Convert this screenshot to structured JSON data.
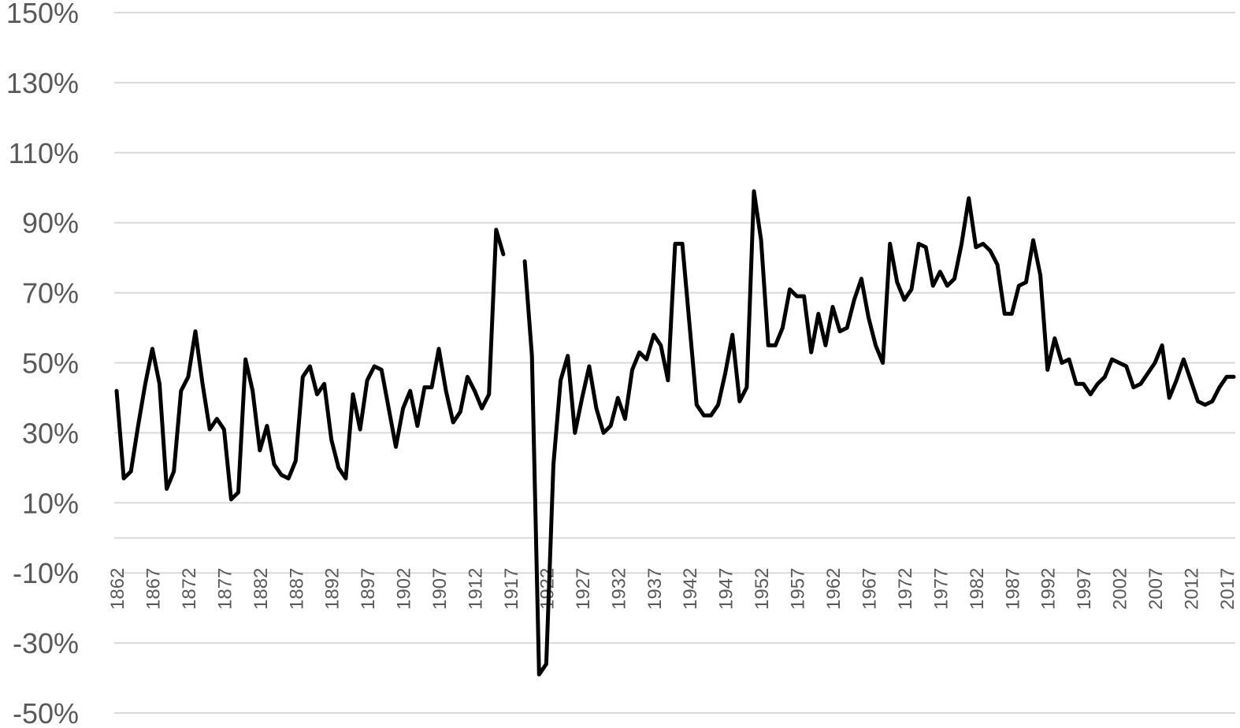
{
  "chart_data": {
    "type": "line",
    "title": "",
    "xlabel": "",
    "ylabel": "",
    "ylim": [
      -50,
      150
    ],
    "y_ticks": [
      "150%",
      "130%",
      "110%",
      "90%",
      "70%",
      "50%",
      "30%",
      "10%",
      "-10%",
      "-30%",
      "-50%"
    ],
    "y_tick_values": [
      150,
      130,
      110,
      90,
      70,
      50,
      30,
      10,
      -10,
      -30,
      -50
    ],
    "x_ticks": [
      "1862",
      "1867",
      "1872",
      "1877",
      "1882",
      "1887",
      "1892",
      "1897",
      "1902",
      "1907",
      "1912",
      "1917",
      "1922",
      "1927",
      "1932",
      "1937",
      "1942",
      "1947",
      "1952",
      "1957",
      "1962",
      "1967",
      "1972",
      "1977",
      "1982",
      "1987",
      "1992",
      "1997",
      "2002",
      "2007",
      "2012",
      "2017"
    ],
    "xlim": [
      1862,
      2018
    ],
    "x_axis_crosses_y": 0,
    "grid": true,
    "legend": "none",
    "line_color": "#000000",
    "series": [
      {
        "x": [
          1862,
          1863,
          1864,
          1865,
          1866,
          1867,
          1868,
          1869,
          1870,
          1871,
          1872,
          1873,
          1874,
          1875,
          1876,
          1877,
          1878,
          1879,
          1880,
          1881,
          1882,
          1883,
          1884,
          1885,
          1886,
          1887,
          1888,
          1889,
          1890,
          1891,
          1892,
          1893,
          1894,
          1895,
          1896,
          1897,
          1898,
          1899,
          1900,
          1901,
          1902,
          1903,
          1904,
          1905,
          1906,
          1907,
          1908,
          1909,
          1910,
          1911,
          1912,
          1913,
          1914,
          1915,
          1916,
          1917,
          1918,
          1919,
          1920,
          1921,
          1922,
          1923,
          1924,
          1925,
          1926,
          1927,
          1928,
          1929,
          1930,
          1931,
          1932,
          1933,
          1934,
          1935,
          1936,
          1937,
          1938,
          1939,
          1940,
          1941,
          1942,
          1943,
          1944,
          1945,
          1946,
          1947,
          1948,
          1949,
          1950,
          1951,
          1952,
          1953,
          1954,
          1955,
          1956,
          1957,
          1958,
          1959,
          1960,
          1961,
          1962,
          1963,
          1964,
          1965,
          1966,
          1967,
          1968,
          1969,
          1970,
          1971,
          1972,
          1973,
          1974,
          1975,
          1976,
          1977,
          1978,
          1979,
          1980,
          1981,
          1982,
          1983,
          1984,
          1985,
          1986,
          1987,
          1988,
          1989,
          1990,
          1991,
          1992,
          1993,
          1994,
          1995,
          1996,
          1997,
          1998,
          1999,
          2000,
          2001,
          2002,
          2003,
          2004,
          2005,
          2006,
          2007,
          2008,
          2009,
          2010,
          2011,
          2012,
          2013,
          2014,
          2015,
          2016,
          2017,
          2018
        ],
        "values": [
          42,
          17,
          19,
          32,
          44,
          54,
          44,
          14,
          19,
          42,
          46,
          59,
          44,
          31,
          34,
          31,
          11,
          13,
          51,
          42,
          25,
          32,
          21,
          18,
          17,
          22,
          46,
          49,
          41,
          44,
          28,
          20,
          17,
          41,
          31,
          45,
          49,
          48,
          37,
          26,
          37,
          42,
          32,
          43,
          43,
          54,
          42,
          33,
          36,
          46,
          42,
          37,
          41,
          88,
          81,
          null,
          null,
          79,
          52,
          -39,
          -36,
          21,
          45,
          52,
          30,
          40,
          49,
          37,
          30,
          32,
          40,
          34,
          48,
          53,
          51,
          58,
          55,
          45,
          84,
          84,
          61,
          38,
          35,
          35,
          38,
          47,
          58,
          39,
          43,
          99,
          85,
          55,
          55,
          60,
          71,
          69,
          69,
          53,
          64,
          55,
          66,
          59,
          60,
          68,
          74,
          63,
          55,
          50,
          84,
          73,
          68,
          71,
          84,
          83,
          72,
          76,
          72,
          74,
          84,
          97,
          83,
          84,
          82,
          78,
          64,
          64,
          72,
          73,
          85,
          75,
          48,
          57,
          50,
          51,
          44,
          44,
          41,
          44,
          46,
          51,
          50,
          49,
          43,
          44,
          47,
          50,
          55,
          40,
          45,
          51,
          45,
          39,
          38,
          39,
          43,
          46,
          46
        ]
      }
    ]
  }
}
